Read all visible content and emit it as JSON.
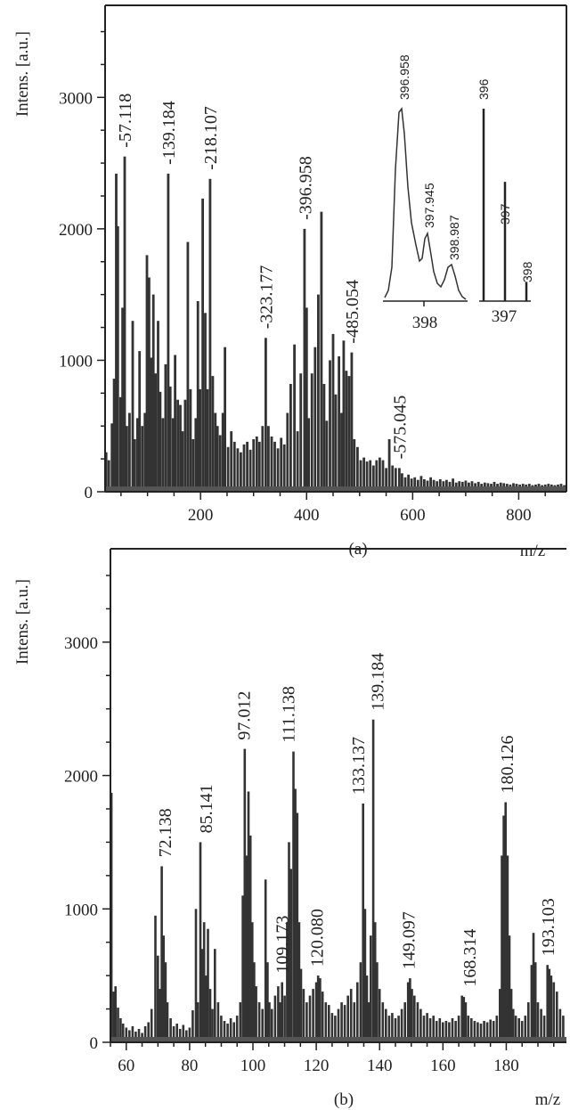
{
  "chart_data": [
    {
      "id": "a",
      "type": "bar",
      "panel_label": "(a)",
      "xlabel": "m/z",
      "ylabel": "Intens. [a.u.]",
      "xlim": [
        20,
        890
      ],
      "ylim": [
        0,
        3700
      ],
      "xticks": [
        200,
        400,
        600,
        800
      ],
      "yticks": [
        0,
        1000,
        2000,
        3000
      ],
      "peaks": [
        {
          "x": 57.118,
          "y": 2550,
          "label": "57.118"
        },
        {
          "x": 139.184,
          "y": 2420,
          "label": "139.184"
        },
        {
          "x": 218.107,
          "y": 2380,
          "label": "218.107"
        },
        {
          "x": 323.177,
          "y": 1170,
          "label": "323.177"
        },
        {
          "x": 396.958,
          "y": 2000,
          "label": "396.958"
        },
        {
          "x": 485.054,
          "y": 1060,
          "label": "485.054"
        },
        {
          "x": 575.045,
          "y": 180,
          "label": "575.045"
        }
      ],
      "bars": [
        [
          22,
          300
        ],
        [
          27,
          240
        ],
        [
          33,
          520
        ],
        [
          37,
          860
        ],
        [
          41,
          2420
        ],
        [
          44,
          2020
        ],
        [
          49,
          720
        ],
        [
          53,
          1400
        ],
        [
          57,
          2550
        ],
        [
          61,
          500
        ],
        [
          66,
          600
        ],
        [
          72,
          1300
        ],
        [
          76,
          400
        ],
        [
          81,
          560
        ],
        [
          85,
          1070
        ],
        [
          90,
          500
        ],
        [
          95,
          600
        ],
        [
          99,
          1800
        ],
        [
          103,
          1630
        ],
        [
          107,
          1020
        ],
        [
          111,
          1500
        ],
        [
          115,
          900
        ],
        [
          120,
          1300
        ],
        [
          124,
          760
        ],
        [
          129,
          560
        ],
        [
          134,
          970
        ],
        [
          139,
          2420
        ],
        [
          143,
          800
        ],
        [
          148,
          560
        ],
        [
          152,
          1040
        ],
        [
          157,
          700
        ],
        [
          162,
          660
        ],
        [
          166,
          460
        ],
        [
          171,
          700
        ],
        [
          176,
          1900
        ],
        [
          181,
          780
        ],
        [
          186,
          400
        ],
        [
          191,
          560
        ],
        [
          195,
          1450
        ],
        [
          199,
          780
        ],
        [
          204,
          2230
        ],
        [
          209,
          1360
        ],
        [
          213,
          780
        ],
        [
          218,
          2380
        ],
        [
          223,
          880
        ],
        [
          228,
          600
        ],
        [
          232,
          500
        ],
        [
          237,
          430
        ],
        [
          242,
          600
        ],
        [
          246,
          1100
        ],
        [
          252,
          340
        ],
        [
          258,
          460
        ],
        [
          264,
          380
        ],
        [
          270,
          330
        ],
        [
          276,
          300
        ],
        [
          282,
          360
        ],
        [
          288,
          380
        ],
        [
          294,
          320
        ],
        [
          300,
          400
        ],
        [
          306,
          420
        ],
        [
          311,
          380
        ],
        [
          317,
          500
        ],
        [
          323,
          1170
        ],
        [
          328,
          500
        ],
        [
          334,
          420
        ],
        [
          340,
          380
        ],
        [
          346,
          330
        ],
        [
          352,
          410
        ],
        [
          358,
          360
        ],
        [
          364,
          600
        ],
        [
          370,
          820
        ],
        [
          377,
          1120
        ],
        [
          383,
          460
        ],
        [
          389,
          900
        ],
        [
          396,
          2000
        ],
        [
          400,
          1400
        ],
        [
          404,
          560
        ],
        [
          410,
          900
        ],
        [
          416,
          1100
        ],
        [
          422,
          1500
        ],
        [
          428,
          2130
        ],
        [
          433,
          820
        ],
        [
          438,
          540
        ],
        [
          444,
          1000
        ],
        [
          450,
          1200
        ],
        [
          455,
          740
        ],
        [
          461,
          1030
        ],
        [
          466,
          600
        ],
        [
          470,
          1150
        ],
        [
          475,
          920
        ],
        [
          480,
          880
        ],
        [
          485,
          1060
        ],
        [
          490,
          400
        ],
        [
          496,
          340
        ],
        [
          502,
          240
        ],
        [
          508,
          260
        ],
        [
          514,
          230
        ],
        [
          520,
          240
        ],
        [
          526,
          200
        ],
        [
          532,
          240
        ],
        [
          538,
          260
        ],
        [
          544,
          240
        ],
        [
          550,
          180
        ],
        [
          556,
          400
        ],
        [
          562,
          200
        ],
        [
          568,
          180
        ],
        [
          575,
          180
        ],
        [
          580,
          140
        ],
        [
          586,
          110
        ],
        [
          592,
          130
        ],
        [
          598,
          100
        ],
        [
          604,
          110
        ],
        [
          610,
          90
        ],
        [
          616,
          120
        ],
        [
          622,
          95
        ],
        [
          628,
          85
        ],
        [
          634,
          110
        ],
        [
          640,
          90
        ],
        [
          646,
          80
        ],
        [
          652,
          95
        ],
        [
          658,
          80
        ],
        [
          664,
          90
        ],
        [
          670,
          75
        ],
        [
          676,
          100
        ],
        [
          682,
          70
        ],
        [
          688,
          80
        ],
        [
          694,
          75
        ],
        [
          700,
          85
        ],
        [
          706,
          70
        ],
        [
          712,
          80
        ],
        [
          718,
          65
        ],
        [
          724,
          75
        ],
        [
          730,
          60
        ],
        [
          736,
          70
        ],
        [
          742,
          65
        ],
        [
          748,
          60
        ],
        [
          754,
          75
        ],
        [
          760,
          60
        ],
        [
          766,
          70
        ],
        [
          772,
          65
        ],
        [
          778,
          60
        ],
        [
          784,
          55
        ],
        [
          790,
          65
        ],
        [
          796,
          60
        ],
        [
          802,
          55
        ],
        [
          808,
          60
        ],
        [
          814,
          55
        ],
        [
          820,
          60
        ],
        [
          826,
          50
        ],
        [
          832,
          55
        ],
        [
          838,
          60
        ],
        [
          844,
          50
        ],
        [
          850,
          55
        ],
        [
          856,
          60
        ],
        [
          862,
          55
        ],
        [
          868,
          50
        ],
        [
          874,
          55
        ],
        [
          880,
          60
        ],
        [
          886,
          50
        ]
      ],
      "inset_profile": {
        "axis_label": "398",
        "peaks": [
          {
            "label": "396.958"
          },
          {
            "label": "397.945"
          },
          {
            "label": "398.987"
          }
        ]
      },
      "inset_sticks": {
        "axis_label": "397",
        "sticks": [
          {
            "label": "396",
            "value": 1.0
          },
          {
            "label": "397",
            "value": 0.62
          },
          {
            "label": "398",
            "value": 0.1
          }
        ]
      }
    },
    {
      "id": "b",
      "type": "bar",
      "panel_label": "(b)",
      "xlabel": "m/z",
      "ylabel": "Intens. [a.u.]",
      "xlim": [
        55,
        199
      ],
      "ylim": [
        0,
        3700
      ],
      "xticks": [
        60,
        80,
        100,
        120,
        140,
        160,
        180
      ],
      "yticks": [
        0,
        1000,
        2000,
        3000
      ],
      "peaks": [
        {
          "x": 72.138,
          "y": 1320,
          "label": "72.138"
        },
        {
          "x": 85.141,
          "y": 1500,
          "label": "85.141"
        },
        {
          "x": 97.012,
          "y": 2200,
          "label": "97.012"
        },
        {
          "x": 109.173,
          "y": 450,
          "label": "109.173"
        },
        {
          "x": 111.138,
          "y": 2180,
          "label": "111.138"
        },
        {
          "x": 120.08,
          "y": 500,
          "label": "120.080"
        },
        {
          "x": 133.137,
          "y": 1790,
          "label": "133.137"
        },
        {
          "x": 139.184,
          "y": 2420,
          "label": "139.184"
        },
        {
          "x": 149.097,
          "y": 480,
          "label": "149.097"
        },
        {
          "x": 168.314,
          "y": 350,
          "label": "168.314"
        },
        {
          "x": 180.126,
          "y": 1800,
          "label": "180.126"
        },
        {
          "x": 193.103,
          "y": 580,
          "label": "193.103"
        }
      ],
      "bars": [
        [
          55.3,
          1870
        ],
        [
          56.0,
          380
        ],
        [
          56.6,
          420
        ],
        [
          57.4,
          260
        ],
        [
          58.2,
          180
        ],
        [
          59.0,
          140
        ],
        [
          60.0,
          110
        ],
        [
          61.0,
          90
        ],
        [
          62.0,
          120
        ],
        [
          63.0,
          80
        ],
        [
          64.0,
          100
        ],
        [
          65.0,
          70
        ],
        [
          66.0,
          120
        ],
        [
          67.0,
          150
        ],
        [
          68.0,
          250
        ],
        [
          69.2,
          950
        ],
        [
          70.0,
          650
        ],
        [
          70.6,
          400
        ],
        [
          71.2,
          1320
        ],
        [
          71.8,
          800
        ],
        [
          72.4,
          600
        ],
        [
          73.0,
          300
        ],
        [
          74.0,
          180
        ],
        [
          75.0,
          120
        ],
        [
          76.0,
          140
        ],
        [
          77.0,
          100
        ],
        [
          78.0,
          130
        ],
        [
          79.0,
          90
        ],
        [
          80.0,
          110
        ],
        [
          81.0,
          240
        ],
        [
          82.0,
          1000
        ],
        [
          82.6,
          300
        ],
        [
          83.4,
          1500
        ],
        [
          84.0,
          700
        ],
        [
          84.6,
          900
        ],
        [
          85.2,
          500
        ],
        [
          85.8,
          850
        ],
        [
          86.5,
          400
        ],
        [
          87.2,
          250
        ],
        [
          88.0,
          700
        ],
        [
          89.0,
          300
        ],
        [
          90.0,
          200
        ],
        [
          91.0,
          160
        ],
        [
          92.0,
          140
        ],
        [
          93.0,
          180
        ],
        [
          94.0,
          150
        ],
        [
          95.0,
          200
        ],
        [
          96.0,
          300
        ],
        [
          96.8,
          1100
        ],
        [
          97.4,
          2200
        ],
        [
          98.0,
          1400
        ],
        [
          98.6,
          1880
        ],
        [
          99.2,
          1550
        ],
        [
          99.8,
          900
        ],
        [
          100.4,
          600
        ],
        [
          101.0,
          420
        ],
        [
          102.0,
          300
        ],
        [
          103.0,
          250
        ],
        [
          104.0,
          1220
        ],
        [
          104.6,
          600
        ],
        [
          105.2,
          300
        ],
        [
          106.0,
          250
        ],
        [
          107.0,
          350
        ],
        [
          108.0,
          420
        ],
        [
          108.6,
          300
        ],
        [
          109.2,
          450
        ],
        [
          110.0,
          350
        ],
        [
          110.8,
          900
        ],
        [
          111.4,
          1500
        ],
        [
          112.0,
          1300
        ],
        [
          112.8,
          2180
        ],
        [
          113.4,
          1900
        ],
        [
          114.0,
          1720
        ],
        [
          114.6,
          900
        ],
        [
          115.2,
          550
        ],
        [
          116.0,
          400
        ],
        [
          117.0,
          300
        ],
        [
          118.0,
          350
        ],
        [
          119.0,
          400
        ],
        [
          120.0,
          450
        ],
        [
          120.6,
          500
        ],
        [
          121.2,
          480
        ],
        [
          122.0,
          380
        ],
        [
          123.0,
          300
        ],
        [
          124.0,
          280
        ],
        [
          125.0,
          220
        ],
        [
          126.0,
          200
        ],
        [
          127.0,
          250
        ],
        [
          128.0,
          300
        ],
        [
          129.0,
          280
        ],
        [
          130.0,
          350
        ],
        [
          131.0,
          400
        ],
        [
          132.0,
          300
        ],
        [
          133.0,
          450
        ],
        [
          134.0,
          600
        ],
        [
          134.8,
          1790
        ],
        [
          135.4,
          1000
        ],
        [
          136.0,
          500
        ],
        [
          136.6,
          300
        ],
        [
          137.2,
          800
        ],
        [
          138.0,
          2420
        ],
        [
          138.6,
          900
        ],
        [
          139.2,
          600
        ],
        [
          140.0,
          400
        ],
        [
          141.0,
          300
        ],
        [
          142.0,
          250
        ],
        [
          143.0,
          200
        ],
        [
          144.0,
          220
        ],
        [
          145.0,
          180
        ],
        [
          146.0,
          200
        ],
        [
          147.0,
          250
        ],
        [
          148.0,
          300
        ],
        [
          149.0,
          450
        ],
        [
          149.6,
          480
        ],
        [
          150.2,
          400
        ],
        [
          151.0,
          350
        ],
        [
          152.0,
          300
        ],
        [
          153.0,
          250
        ],
        [
          154.0,
          200
        ],
        [
          155.0,
          220
        ],
        [
          156.0,
          180
        ],
        [
          157.0,
          200
        ],
        [
          158.0,
          160
        ],
        [
          159.0,
          180
        ],
        [
          160.0,
          150
        ],
        [
          161.0,
          160
        ],
        [
          162.0,
          150
        ],
        [
          163.0,
          180
        ],
        [
          164.0,
          160
        ],
        [
          165.0,
          200
        ],
        [
          166.0,
          350
        ],
        [
          166.6,
          340
        ],
        [
          167.2,
          300
        ],
        [
          168.0,
          200
        ],
        [
          169.0,
          180
        ],
        [
          170.0,
          160
        ],
        [
          171.0,
          150
        ],
        [
          172.0,
          140
        ],
        [
          173.0,
          160
        ],
        [
          174.0,
          150
        ],
        [
          175.0,
          170
        ],
        [
          176.0,
          160
        ],
        [
          177.0,
          200
        ],
        [
          178.0,
          400
        ],
        [
          178.6,
          1400
        ],
        [
          179.2,
          1700
        ],
        [
          179.8,
          1800
        ],
        [
          180.4,
          1400
        ],
        [
          181.0,
          800
        ],
        [
          181.6,
          400
        ],
        [
          182.2,
          250
        ],
        [
          183.0,
          200
        ],
        [
          184.0,
          180
        ],
        [
          185.0,
          160
        ],
        [
          186.0,
          200
        ],
        [
          187.0,
          300
        ],
        [
          188.0,
          580
        ],
        [
          188.6,
          820
        ],
        [
          189.2,
          600
        ],
        [
          190.0,
          300
        ],
        [
          191.0,
          250
        ],
        [
          192.0,
          200
        ],
        [
          193.0,
          580
        ],
        [
          193.6,
          550
        ],
        [
          194.2,
          500
        ],
        [
          195.0,
          450
        ],
        [
          196.0,
          380
        ],
        [
          197.0,
          250
        ],
        [
          198.0,
          200
        ]
      ]
    }
  ]
}
